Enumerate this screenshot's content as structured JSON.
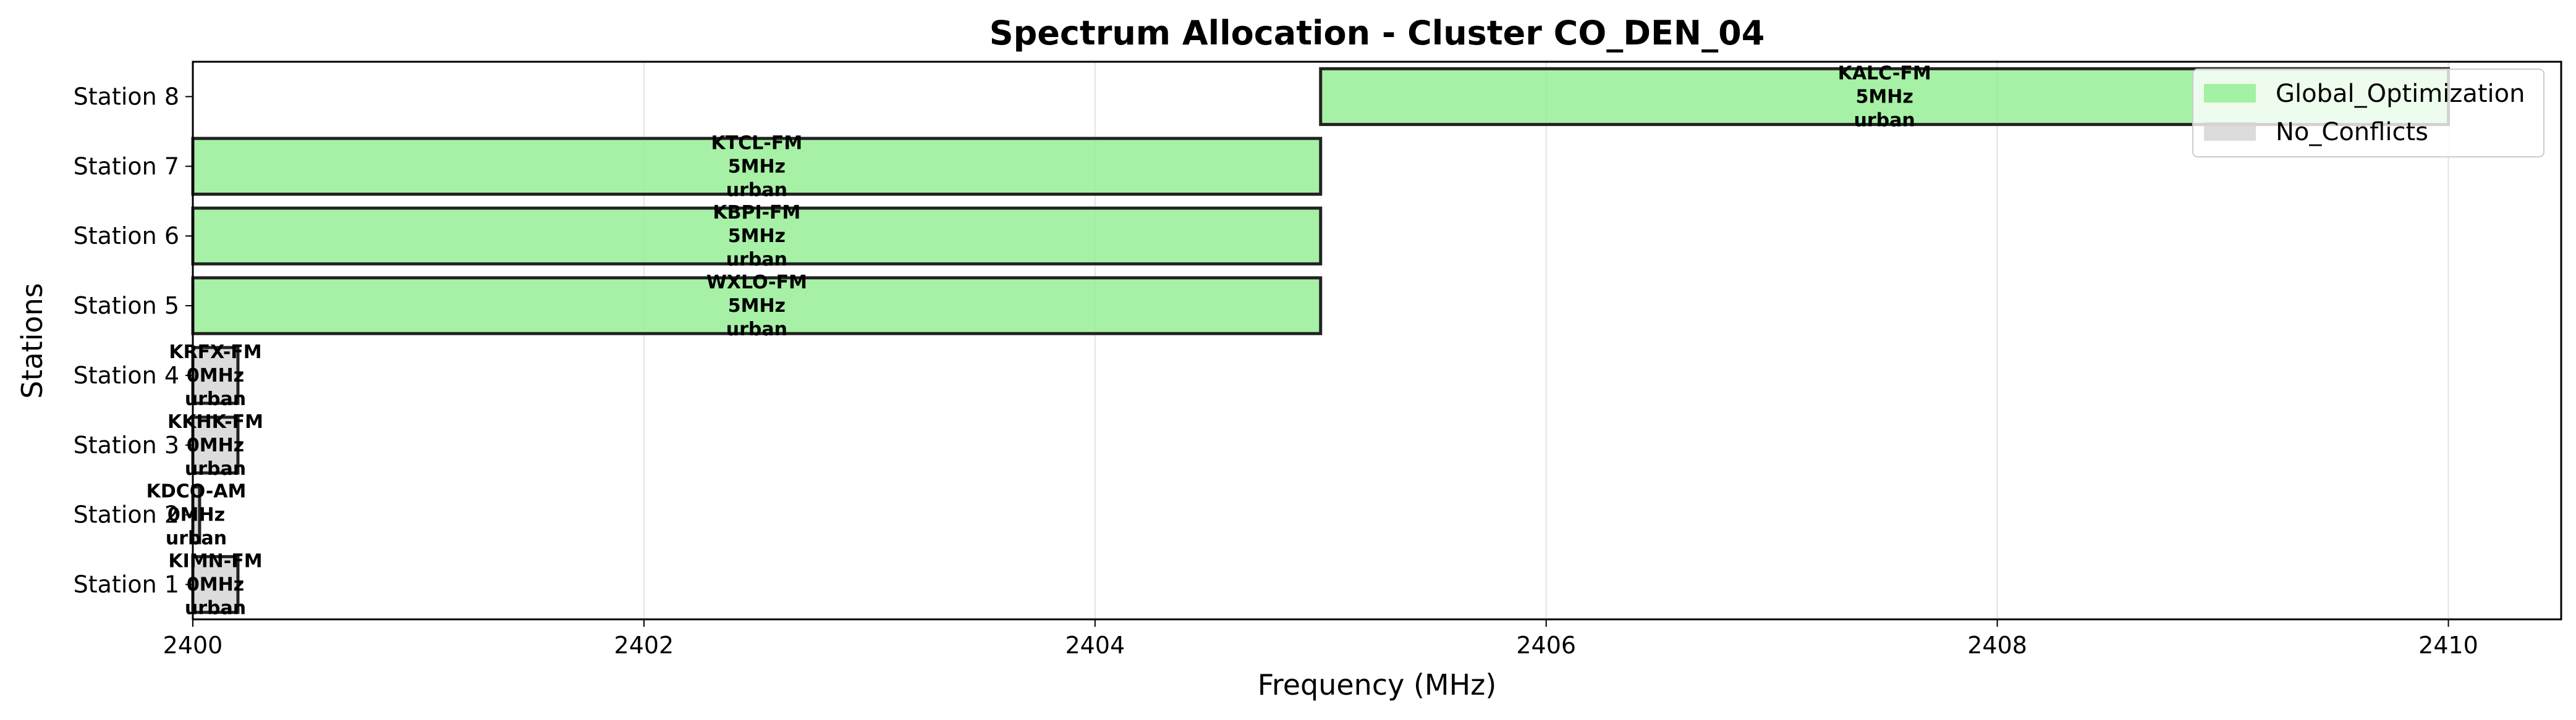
{
  "chart_data": {
    "type": "bar",
    "orientation": "horizontal",
    "title": "Spectrum Allocation - Cluster CO_DEN_04",
    "xlabel": "Frequency (MHz)",
    "ylabel": "Stations",
    "xlim": [
      2400,
      2410.5
    ],
    "xticks": [
      2400,
      2402,
      2404,
      2406,
      2408,
      2410
    ],
    "categories": [
      "Station 1",
      "Station 2",
      "Station 3",
      "Station 4",
      "Station 5",
      "Station 6",
      "Station 7",
      "Station 8"
    ],
    "grid": "vertical",
    "legend_position": "top-right",
    "series": [
      {
        "name": "Global_Optimization",
        "color": "#90ee90"
      },
      {
        "name": "No_Conflicts",
        "color": "#d3d3d3"
      }
    ],
    "bars": [
      {
        "station": "Station 1",
        "callsign": "KIMN-FM",
        "start": 2400,
        "end": 2400.2,
        "bandwidth": "0MHz",
        "area": "urban",
        "series": "No_Conflicts"
      },
      {
        "station": "Station 2",
        "callsign": "KDCO-AM",
        "start": 2400,
        "end": 2400.03,
        "bandwidth": "0MHz",
        "area": "urban",
        "series": "No_Conflicts"
      },
      {
        "station": "Station 3",
        "callsign": "KKHK-FM",
        "start": 2400,
        "end": 2400.2,
        "bandwidth": "0MHz",
        "area": "urban",
        "series": "No_Conflicts"
      },
      {
        "station": "Station 4",
        "callsign": "KRFX-FM",
        "start": 2400,
        "end": 2400.2,
        "bandwidth": "0MHz",
        "area": "urban",
        "series": "No_Conflicts"
      },
      {
        "station": "Station 5",
        "callsign": "WXLO-FM",
        "start": 2400,
        "end": 2405,
        "bandwidth": "5MHz",
        "area": "urban",
        "series": "Global_Optimization"
      },
      {
        "station": "Station 6",
        "callsign": "KBPI-FM",
        "start": 2400,
        "end": 2405,
        "bandwidth": "5MHz",
        "area": "urban",
        "series": "Global_Optimization"
      },
      {
        "station": "Station 7",
        "callsign": "KTCL-FM",
        "start": 2400,
        "end": 2405,
        "bandwidth": "5MHz",
        "area": "urban",
        "series": "Global_Optimization"
      },
      {
        "station": "Station 8",
        "callsign": "KALC-FM",
        "start": 2405,
        "end": 2410,
        "bandwidth": "5MHz",
        "area": "urban",
        "series": "Global_Optimization"
      }
    ]
  }
}
